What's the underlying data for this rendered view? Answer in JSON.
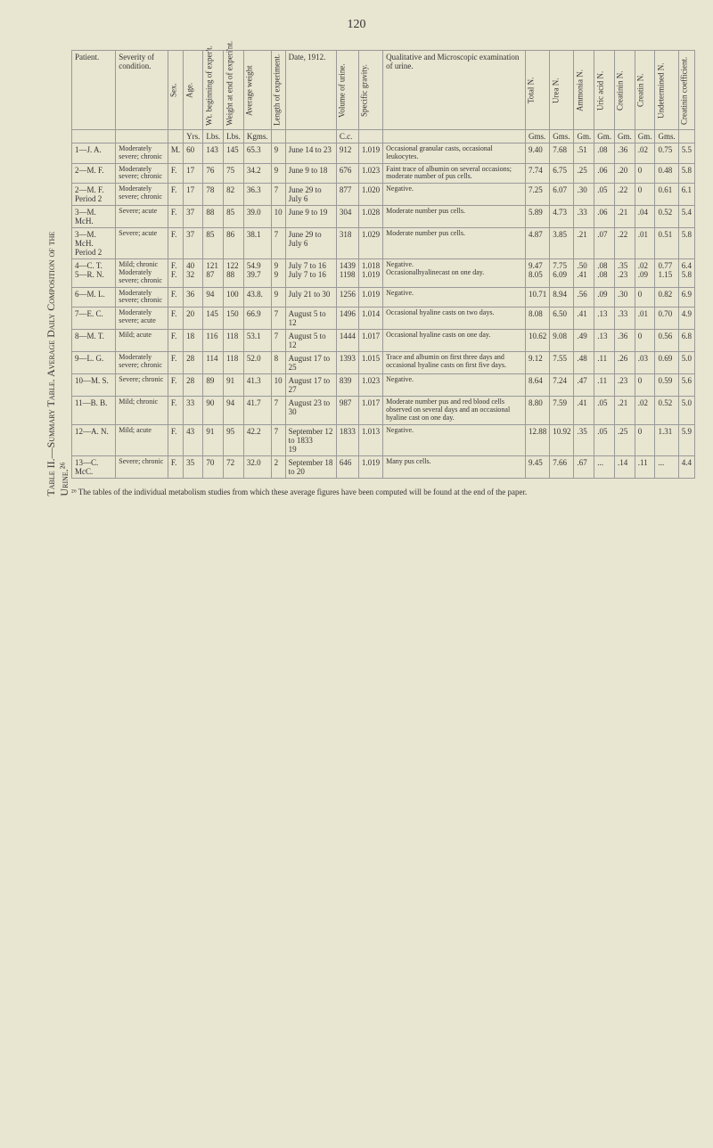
{
  "page_number": "120",
  "table_title": "Table II.—Summary Table. Average Daily Composition of the Urine.²⁶",
  "headers": {
    "patient": "Patient.",
    "severity": "Severity of condition.",
    "sex": "Sex.",
    "age": "Age.",
    "weight_begin": "Wt. beginning of exper't.",
    "weight_end": "Weight at end of experi'nt.",
    "avg_weight": "Average weight",
    "length_exp": "Length of experiment.",
    "date": "Date, 1912.",
    "volume": "Volume of urine.",
    "sp_gravity": "Specific gravity.",
    "qualitative": "Qualitative and Microscopic examination of urine.",
    "total_n": "Total N.",
    "urea_n": "Urea N.",
    "ammonia_n": "Ammonia N.",
    "uric_acid_n": "Uric acid N.",
    "creatinin_n": "Creatinin N.",
    "creatin_n": "Creatin N.",
    "undetermined_n": "Undetermined N.",
    "creatinin_coeff": "Creatinin coefficient."
  },
  "units": {
    "age": "Yrs.",
    "weight_begin": "Lbs.",
    "weight_end": "Lbs.",
    "avg_weight": "Kgms.",
    "volume": "C.c.",
    "total_n": "Gms.",
    "urea_n": "Gms.",
    "ammonia_n": "Gm.",
    "uric_acid_n": "Gm.",
    "creatinin_n": "Gm.",
    "creatin_n": "Gm.",
    "undetermined_n": "Gms."
  },
  "rows": [
    {
      "patient": "1—J. A.",
      "severity": "Moderately severe; chronic",
      "sex": "M.",
      "age": "60",
      "wb": "143",
      "we": "145",
      "aw": "65.3",
      "le": "9",
      "date": "June 14 to 23",
      "vol": "912",
      "sg": "1.019",
      "qual": "Occasional granular casts, occasional leukocytes.",
      "tn": "9.40",
      "un": "7.68",
      "an": ".51",
      "uan": ".08",
      "crn": ".36",
      "cn": ".02",
      "udn": "0.75",
      "cc": "5.5"
    },
    {
      "patient": "2—M. F.",
      "severity": "Moderately severe; chronic",
      "sex": "F.",
      "age": "17",
      "wb": "76",
      "we": "75",
      "aw": "34.2",
      "le": "9",
      "date": "June 9 to 18",
      "vol": "676",
      "sg": "1.023",
      "qual": "Faint trace of albumin on several occasions; moderate number of pus cells.",
      "tn": "7.74",
      "un": "6.75",
      "an": ".25",
      "uan": ".06",
      "crn": ".20",
      "cn": "0",
      "udn": "0.48",
      "cc": "5.8"
    },
    {
      "patient": "2—M. F. Period 2",
      "severity": "Moderately severe; chronic",
      "sex": "F.",
      "age": "17",
      "wb": "78",
      "we": "82",
      "aw": "36.3",
      "le": "7",
      "date": "June 29 to July 6",
      "vol": "877",
      "sg": "1.020",
      "qual": "Negative.",
      "tn": "7.25",
      "un": "6.07",
      "an": ".30",
      "uan": ".05",
      "crn": ".22",
      "cn": "0",
      "udn": "0.61",
      "cc": "6.1"
    },
    {
      "patient": "3—M. McH.",
      "severity": "Severe; acute",
      "sex": "F.",
      "age": "37",
      "wb": "88",
      "we": "85",
      "aw": "39.0",
      "le": "10",
      "date": "June 9 to 19",
      "vol": "304",
      "sg": "1.028",
      "qual": "Moderate number pus cells.",
      "tn": "5.89",
      "un": "4.73",
      "an": ".33",
      "uan": ".06",
      "crn": ".21",
      "cn": ".04",
      "udn": "0.52",
      "cc": "5.4"
    },
    {
      "patient": "3—M. McH. Period 2",
      "severity": "Severe; acute",
      "sex": "F.",
      "age": "37",
      "wb": "85",
      "we": "86",
      "aw": "38.1",
      "le": "7",
      "date": "June 29 to July 6",
      "vol": "318",
      "sg": "1.029",
      "qual": "Moderate number pus cells.",
      "tn": "4.87",
      "un": "3.85",
      "an": ".21",
      "uan": ".07",
      "crn": ".22",
      "cn": ".01",
      "udn": "0.51",
      "cc": "5.8"
    },
    {
      "patient": "4—C. T.\n5—R. N.",
      "severity": "Mild; chronic\nModerately severe; chronic",
      "sex": "F.\nF.",
      "age": "40\n32",
      "wb": "121\n87",
      "we": "122\n88",
      "aw": "54.9\n39.7",
      "le": "9\n9",
      "date": "July 7 to 16\nJuly 7 to 16",
      "vol": "1439\n1198",
      "sg": "1.018\n1.019",
      "qual": "Negative.\nOccasionalhyalinecast on one day.",
      "tn": "9.47\n8.05",
      "un": "7.75\n6.09",
      "an": ".50\n.41",
      "uan": ".08\n.08",
      "crn": ".35\n.23",
      "cn": ".02\n.09",
      "udn": "0.77\n1.15",
      "cc": "6.4\n5.8"
    },
    {
      "patient": "6—M. L.",
      "severity": "Moderately severe; chronic",
      "sex": "F.",
      "age": "36",
      "wb": "94",
      "we": "100",
      "aw": "43.8.",
      "le": "9",
      "date": "July 21 to 30",
      "vol": "1256",
      "sg": "1.019",
      "qual": "Negative.",
      "tn": "10.71",
      "un": "8.94",
      "an": ".56",
      "uan": ".09",
      "crn": ".30",
      "cn": "0",
      "udn": "0.82",
      "cc": "6.9"
    },
    {
      "patient": "7—E. C.",
      "severity": "Moderately severe; acute",
      "sex": "F.",
      "age": "20",
      "wb": "145",
      "we": "150",
      "aw": "66.9",
      "le": "7",
      "date": "August 5 to 12",
      "vol": "1496",
      "sg": "1.014",
      "qual": "Occasional hyaline casts on two days.",
      "tn": "8.08",
      "un": "6.50",
      "an": ".41",
      "uan": ".13",
      "crn": ".33",
      "cn": ".01",
      "udn": "0.70",
      "cc": "4.9"
    },
    {
      "patient": "8—M. T.",
      "severity": "Mild; acute",
      "sex": "F.",
      "age": "18",
      "wb": "116",
      "we": "118",
      "aw": "53.1",
      "le": "7",
      "date": "August 5 to 12",
      "vol": "1444",
      "sg": "1.017",
      "qual": "Occasional hyaline casts on one day.",
      "tn": "10.62",
      "un": "9.08",
      "an": ".49",
      "uan": ".13",
      "crn": ".36",
      "cn": "0",
      "udn": "0.56",
      "cc": "6.8"
    },
    {
      "patient": "9—L. G.",
      "severity": "Moderately severe; chronic",
      "sex": "F.",
      "age": "28",
      "wb": "114",
      "we": "118",
      "aw": "52.0",
      "le": "8",
      "date": "August 17 to 25",
      "vol": "1393",
      "sg": "1.015",
      "qual": "Trace and albumin on first three days and occasional hyaline casts on first five days.",
      "tn": "9.12",
      "un": "7.55",
      "an": ".48",
      "uan": ".11",
      "crn": ".26",
      "cn": ".03",
      "udn": "0.69",
      "cc": "5.0"
    },
    {
      "patient": "10—M. S.",
      "severity": "Severe; chronic",
      "sex": "F.",
      "age": "28",
      "wb": "89",
      "we": "91",
      "aw": "41.3",
      "le": "10",
      "date": "August 17 to 27",
      "vol": "839",
      "sg": "1.023",
      "qual": "Negative.",
      "tn": "8.64",
      "un": "7.24",
      "an": ".47",
      "uan": ".11",
      "crn": ".23",
      "cn": "0",
      "udn": "0.59",
      "cc": "5.6"
    },
    {
      "patient": "11—B. B.",
      "severity": "Mild; chronic",
      "sex": "F.",
      "age": "33",
      "wb": "90",
      "we": "94",
      "aw": "41.7",
      "le": "7",
      "date": "August 23 to 30",
      "vol": "987",
      "sg": "1.017",
      "qual": "Moderate number pus and red blood cells observed on several days and an occasional hyaline cast on one day.",
      "tn": "8.80",
      "un": "7.59",
      "an": ".41",
      "uan": ".05",
      "crn": ".21",
      "cn": ".02",
      "udn": "0.52",
      "cc": "5.0"
    },
    {
      "patient": "12—A. N.",
      "severity": "Mild; acute",
      "sex": "F.",
      "age": "43",
      "wb": "91",
      "we": "95",
      "aw": "42.2",
      "le": "7",
      "date": "September 12 to 1833\n19",
      "vol": "1833",
      "sg": "1.013",
      "qual": "Negative.",
      "tn": "12.88",
      "un": "10.92",
      "an": ".35",
      "uan": ".05",
      "crn": ".25",
      "cn": "0",
      "udn": "1.31",
      "cc": "5.9"
    },
    {
      "patient": "13—C. McC.",
      "severity": "Severe; chronic",
      "sex": "F.",
      "age": "35",
      "wb": "70",
      "we": "72",
      "aw": "32.0",
      "le": "2",
      "date": "September 18 to 20",
      "vol": "646",
      "sg": "1.019",
      "qual": "Many pus cells.",
      "tn": "9.45",
      "un": "7.66",
      "an": ".67",
      "uan": "...",
      "crn": ".14",
      "cn": ".11",
      "udn": "...",
      "cc": "4.4"
    }
  ],
  "footnote": "²⁶ The tables of the individual metabolism studies from which these average figures have been computed will be found at the end of the paper."
}
